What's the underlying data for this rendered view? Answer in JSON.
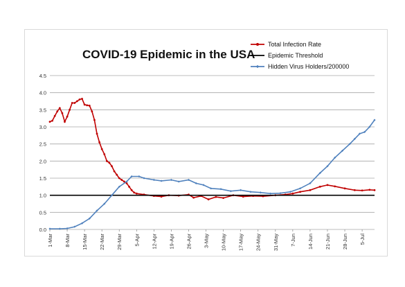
{
  "chart_data": {
    "type": "line",
    "title": "COVID-19 Epidemic in the USA",
    "xlabel": "",
    "ylabel": "",
    "ylim": [
      0,
      4.5
    ],
    "yticks": [
      "0.0",
      "0.5",
      "1.0",
      "1.5",
      "2.0",
      "2.5",
      "3.0",
      "3.5",
      "4.0",
      "4.5"
    ],
    "x_start": "2020-03-01",
    "x_end": "2020-07-10",
    "xticks": [
      "1-Mar",
      "8-Mar",
      "15-Mar",
      "22-Mar",
      "29-Mar",
      "5-Apr",
      "12-Apr",
      "19-Apr",
      "26-Apr",
      "3-May",
      "10-May",
      "17-May",
      "24-May",
      "31-May",
      "7-Jun",
      "14-Jun",
      "21-Jun",
      "28-Jun",
      "5-Jul"
    ],
    "grid": true,
    "legend_position": "top-right",
    "series": [
      {
        "name": "Total Infection Rate",
        "color": "#c00000",
        "marker": "circle",
        "points": [
          [
            "2020-03-01",
            3.15
          ],
          [
            "2020-03-02",
            3.18
          ],
          [
            "2020-03-03",
            3.32
          ],
          [
            "2020-03-04",
            3.45
          ],
          [
            "2020-03-05",
            3.55
          ],
          [
            "2020-03-06",
            3.4
          ],
          [
            "2020-03-07",
            3.15
          ],
          [
            "2020-03-08",
            3.3
          ],
          [
            "2020-03-09",
            3.5
          ],
          [
            "2020-03-10",
            3.7
          ],
          [
            "2020-03-11",
            3.7
          ],
          [
            "2020-03-12",
            3.75
          ],
          [
            "2020-03-13",
            3.8
          ],
          [
            "2020-03-14",
            3.82
          ],
          [
            "2020-03-15",
            3.65
          ],
          [
            "2020-03-16",
            3.63
          ],
          [
            "2020-03-17",
            3.62
          ],
          [
            "2020-03-18",
            3.45
          ],
          [
            "2020-03-19",
            3.2
          ],
          [
            "2020-03-20",
            2.8
          ],
          [
            "2020-03-21",
            2.55
          ],
          [
            "2020-03-22",
            2.35
          ],
          [
            "2020-03-23",
            2.2
          ],
          [
            "2020-03-24",
            2.0
          ],
          [
            "2020-03-25",
            1.95
          ],
          [
            "2020-03-26",
            1.85
          ],
          [
            "2020-03-27",
            1.7
          ],
          [
            "2020-03-28",
            1.6
          ],
          [
            "2020-03-29",
            1.5
          ],
          [
            "2020-03-30",
            1.45
          ],
          [
            "2020-03-31",
            1.4
          ],
          [
            "2020-04-01",
            1.35
          ],
          [
            "2020-04-02",
            1.25
          ],
          [
            "2020-04-03",
            1.15
          ],
          [
            "2020-04-04",
            1.08
          ],
          [
            "2020-04-05",
            1.05
          ],
          [
            "2020-04-08",
            1.02
          ],
          [
            "2020-04-12",
            0.98
          ],
          [
            "2020-04-15",
            0.96
          ],
          [
            "2020-04-18",
            1.0
          ],
          [
            "2020-04-22",
            0.99
          ],
          [
            "2020-04-26",
            1.02
          ],
          [
            "2020-04-28",
            0.93
          ],
          [
            "2020-05-01",
            0.98
          ],
          [
            "2020-05-04",
            0.88
          ],
          [
            "2020-05-07",
            0.95
          ],
          [
            "2020-05-10",
            0.92
          ],
          [
            "2020-05-14",
            1.0
          ],
          [
            "2020-05-18",
            0.96
          ],
          [
            "2020-05-22",
            0.98
          ],
          [
            "2020-05-26",
            0.97
          ],
          [
            "2020-05-31",
            1.0
          ],
          [
            "2020-06-04",
            1.02
          ],
          [
            "2020-06-07",
            1.05
          ],
          [
            "2020-06-10",
            1.1
          ],
          [
            "2020-06-14",
            1.15
          ],
          [
            "2020-06-18",
            1.25
          ],
          [
            "2020-06-21",
            1.3
          ],
          [
            "2020-06-24",
            1.26
          ],
          [
            "2020-06-28",
            1.2
          ],
          [
            "2020-07-02",
            1.15
          ],
          [
            "2020-07-05",
            1.14
          ],
          [
            "2020-07-08",
            1.16
          ],
          [
            "2020-07-10",
            1.15
          ]
        ]
      },
      {
        "name": "Epidemic Threshold",
        "color": "#000000",
        "marker": "none",
        "points": [
          [
            "2020-03-01",
            1.0
          ],
          [
            "2020-07-10",
            1.0
          ]
        ]
      },
      {
        "name": "Hidden Virus Holders/200000",
        "color": "#4f81bd",
        "marker": "diamond",
        "points": [
          [
            "2020-03-01",
            0.02
          ],
          [
            "2020-03-05",
            0.02
          ],
          [
            "2020-03-08",
            0.03
          ],
          [
            "2020-03-11",
            0.08
          ],
          [
            "2020-03-14",
            0.18
          ],
          [
            "2020-03-17",
            0.32
          ],
          [
            "2020-03-20",
            0.55
          ],
          [
            "2020-03-23",
            0.75
          ],
          [
            "2020-03-26",
            1.0
          ],
          [
            "2020-03-29",
            1.25
          ],
          [
            "2020-04-01",
            1.4
          ],
          [
            "2020-04-03",
            1.55
          ],
          [
            "2020-04-06",
            1.55
          ],
          [
            "2020-04-08",
            1.5
          ],
          [
            "2020-04-12",
            1.45
          ],
          [
            "2020-04-15",
            1.42
          ],
          [
            "2020-04-19",
            1.45
          ],
          [
            "2020-04-22",
            1.4
          ],
          [
            "2020-04-26",
            1.45
          ],
          [
            "2020-04-29",
            1.35
          ],
          [
            "2020-05-02",
            1.3
          ],
          [
            "2020-05-05",
            1.2
          ],
          [
            "2020-05-09",
            1.18
          ],
          [
            "2020-05-13",
            1.12
          ],
          [
            "2020-05-17",
            1.15
          ],
          [
            "2020-05-21",
            1.1
          ],
          [
            "2020-05-25",
            1.08
          ],
          [
            "2020-05-29",
            1.05
          ],
          [
            "2020-06-02",
            1.06
          ],
          [
            "2020-06-06",
            1.1
          ],
          [
            "2020-06-10",
            1.2
          ],
          [
            "2020-06-14",
            1.35
          ],
          [
            "2020-06-18",
            1.65
          ],
          [
            "2020-06-21",
            1.85
          ],
          [
            "2020-06-24",
            2.1
          ],
          [
            "2020-06-27",
            2.3
          ],
          [
            "2020-06-30",
            2.5
          ],
          [
            "2020-07-02",
            2.65
          ],
          [
            "2020-07-04",
            2.8
          ],
          [
            "2020-07-06",
            2.85
          ],
          [
            "2020-07-08",
            3.0
          ],
          [
            "2020-07-10",
            3.2
          ]
        ]
      }
    ]
  }
}
